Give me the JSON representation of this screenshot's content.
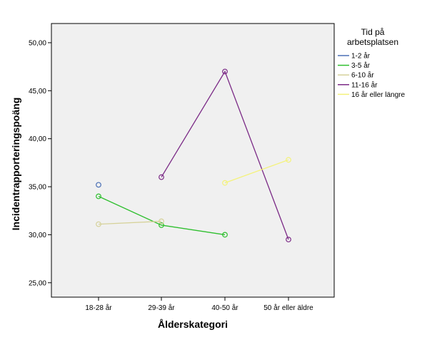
{
  "chart_data": {
    "type": "line",
    "title": "",
    "xlabel": "Ålderskategori",
    "ylabel": "Incidentrapporteringspoäng",
    "categories": [
      "18-28 år",
      "29-39 år",
      "40-50 år",
      "50 år eller äldre"
    ],
    "ylim": [
      23.5,
      52
    ],
    "yticks": [
      "25,00",
      "30,00",
      "35,00",
      "40,00",
      "45,00",
      "50,00"
    ],
    "ytick_values": [
      25,
      30,
      35,
      40,
      45,
      50
    ],
    "grid": false,
    "legend": {
      "title_line1": "Tid på",
      "title_line2": "arbetsplatsen",
      "placement": "right"
    },
    "series": [
      {
        "name": "1-2 år",
        "color": "#4a6fb5",
        "values": [
          35.2,
          null,
          null,
          null
        ]
      },
      {
        "name": "3-5 år",
        "color": "#2ebf2e",
        "values": [
          34.0,
          31.0,
          30.0,
          null
        ]
      },
      {
        "name": "6-10 år",
        "color": "#d6d29a",
        "values": [
          31.1,
          31.4,
          null,
          null
        ]
      },
      {
        "name": "11-16 år",
        "color": "#7b2a86",
        "values": [
          null,
          36.0,
          47.0,
          29.5
        ]
      },
      {
        "name": "16 år eller längre",
        "color": "#f4f27a",
        "values": [
          null,
          null,
          35.4,
          37.8
        ]
      }
    ]
  }
}
